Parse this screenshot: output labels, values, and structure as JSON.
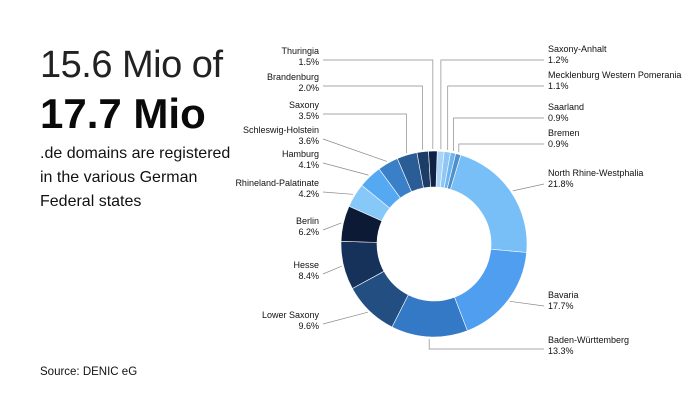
{
  "headline": {
    "line1": "15.6 Mio of",
    "line2": "17.7 Mio",
    "description": ".de domains are registered in the various German Federal states"
  },
  "source": "Source: DENIC eG",
  "chart_data": {
    "type": "pie",
    "variant": "donut",
    "title": "",
    "slices": [
      {
        "name": "Saxony-Anhalt",
        "value": 1.2,
        "label": "1.2%",
        "color": "#a9d3f7"
      },
      {
        "name": "Mecklenburg Western Pomerania",
        "value": 1.1,
        "label": "1.1%",
        "color": "#8fc6f5"
      },
      {
        "name": "Saarland",
        "value": 0.9,
        "label": "0.9%",
        "color": "#6fb5f0"
      },
      {
        "name": "Bremen",
        "value": 0.9,
        "label": "0.9%",
        "color": "#4f8fca"
      },
      {
        "name": "North Rhine-Westphalia",
        "value": 21.8,
        "label": "21.8%",
        "color": "#78bff7"
      },
      {
        "name": "Bavaria",
        "value": 17.7,
        "label": "17.7%",
        "color": "#4f9ef0"
      },
      {
        "name": "Baden-Württemberg",
        "value": 13.3,
        "label": "13.3%",
        "color": "#3479c6"
      },
      {
        "name": "Lower Saxony",
        "value": 9.6,
        "label": "9.6%",
        "color": "#234e82"
      },
      {
        "name": "Hesse",
        "value": 8.4,
        "label": "8.4%",
        "color": "#16325a"
      },
      {
        "name": "Berlin",
        "value": 6.2,
        "label": "6.2%",
        "color": "#0d1a36"
      },
      {
        "name": "Rhineland-Palatinate",
        "value": 4.2,
        "label": "4.2%",
        "color": "#86c8f8"
      },
      {
        "name": "Hamburg",
        "value": 4.1,
        "label": "4.1%",
        "color": "#55a9f2"
      },
      {
        "name": "Schleswig-Holstein",
        "value": 3.6,
        "label": "3.6%",
        "color": "#3a80c9"
      },
      {
        "name": "Saxony",
        "value": 3.5,
        "label": "3.5%",
        "color": "#2a5c95"
      },
      {
        "name": "Brandenburg",
        "value": 2.0,
        "label": "2.0%",
        "color": "#1c3d68"
      },
      {
        "name": "Thuringia",
        "value": 1.5,
        "label": "1.5%",
        "color": "#0f2244"
      }
    ]
  }
}
